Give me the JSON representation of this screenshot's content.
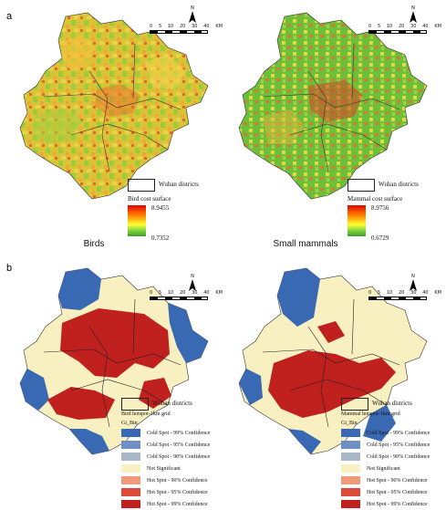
{
  "panels": {
    "a": {
      "letter": "a"
    },
    "b": {
      "letter": "b"
    }
  },
  "captions": {
    "birds": "Birds",
    "mammals": "Small mammals"
  },
  "scalebar": {
    "ticks": [
      "0",
      "5",
      "10",
      "20",
      "30",
      "40"
    ],
    "unit": "KM"
  },
  "north": {
    "label": "N"
  },
  "cost_legends": {
    "birds": {
      "districts": "Wuhan districts",
      "title": "Bird cost surface",
      "max": "8.9455",
      "min": "0.7352"
    },
    "mammals": {
      "districts": "Wuhan districts",
      "title": "Mammal cost surface",
      "max": "8.9756",
      "min": "0.6729"
    }
  },
  "hotspot_legends": {
    "birds": {
      "districts": "Wuhan districts",
      "title": "Bird hotspot-1km grid",
      "field": "Gi_Bin"
    },
    "mammals": {
      "districts": "Wuhan districts",
      "title": "Mammal hotspot-1km grid",
      "field": "Gi_Bin"
    }
  },
  "gi_bins": [
    {
      "label": "Cold Spot - 99% Confidence",
      "color": "#3a69b4"
    },
    {
      "label": "Cold Spot - 95% Confidence",
      "color": "#6e8fc4"
    },
    {
      "label": "Cold Spot - 90% Confidence",
      "color": "#aab7c8"
    },
    {
      "label": "Not Significant",
      "color": "#f8f0c0"
    },
    {
      "label": "Hot Spot - 90% Confidence",
      "color": "#ef9a78"
    },
    {
      "label": "Hot Spot - 95% Confidence",
      "color": "#dc4a3a"
    },
    {
      "label": "Hot Spot - 99% Confidence",
      "color": "#c0201e"
    }
  ],
  "colors": {
    "cost_high": "#e60000",
    "cost_mid": "#ffff33",
    "cost_low": "#3ca02c",
    "cold": "#3a69b4",
    "neutral": "#f8f0c0",
    "hot": "#c0201e"
  }
}
